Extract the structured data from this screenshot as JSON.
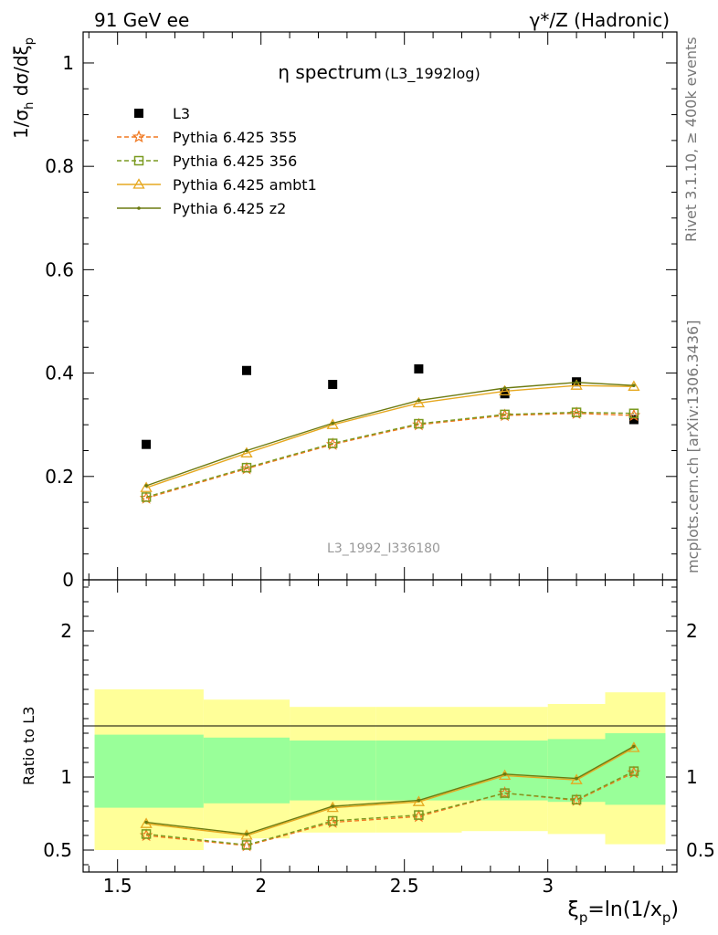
{
  "header": {
    "left": "91 GeV ee",
    "right": "γ*/Z (Hadronic)"
  },
  "side_labels": {
    "rivet": "Rivet 3.1.10, ≥ 400k events",
    "mcplots": "mcplots.cern.ch [arXiv:1306.3436]"
  },
  "chart_data": [
    {
      "type": "scatter",
      "title_main": "η spectrum",
      "title_sub": "(L3_1992log)",
      "watermark": "L3_1992_I336180",
      "ylabel_parts": {
        "a": "1/σ",
        "b": "h",
        "c": " dσ/dξ",
        "d": "p"
      },
      "xlim": [
        1.38,
        3.45
      ],
      "ylim": [
        0,
        1.06
      ],
      "yticks": [
        "0",
        "0.2",
        "0.4",
        "0.6",
        "0.8",
        "1"
      ],
      "series": [
        {
          "name": "L3",
          "color": "#000000",
          "marker": "square",
          "dashed": false,
          "x": [
            1.6,
            1.95,
            2.25,
            2.55,
            2.85,
            3.1,
            3.3
          ],
          "y": [
            0.262,
            0.405,
            0.378,
            0.408,
            0.36,
            0.383,
            0.31
          ]
        },
        {
          "name": "Pythia 6.425 355",
          "color": "#f07820",
          "marker": "star",
          "dashed": true,
          "x": [
            1.6,
            1.95,
            2.25,
            2.55,
            2.85,
            3.1,
            3.3
          ],
          "y": [
            0.158,
            0.215,
            0.262,
            0.3,
            0.318,
            0.322,
            0.318
          ]
        },
        {
          "name": "Pythia 6.425 356",
          "color": "#7a9a20",
          "marker": "open-square",
          "dashed": true,
          "x": [
            1.6,
            1.95,
            2.25,
            2.55,
            2.85,
            3.1,
            3.3
          ],
          "y": [
            0.16,
            0.217,
            0.264,
            0.302,
            0.32,
            0.324,
            0.322
          ]
        },
        {
          "name": "Pythia 6.425 ambt1",
          "color": "#e6a820",
          "marker": "triangle",
          "dashed": false,
          "x": [
            1.6,
            1.95,
            2.25,
            2.55,
            2.85,
            3.1,
            3.3
          ],
          "y": [
            0.178,
            0.245,
            0.3,
            0.342,
            0.365,
            0.376,
            0.374
          ]
        },
        {
          "name": "Pythia 6.425 z2",
          "color": "#6b7a10",
          "marker": "dot",
          "dashed": false,
          "x": [
            1.6,
            1.95,
            2.25,
            2.55,
            2.85,
            3.1,
            3.3
          ],
          "y": [
            0.182,
            0.25,
            0.303,
            0.347,
            0.371,
            0.382,
            0.376
          ]
        }
      ]
    },
    {
      "type": "line",
      "ylabel": "Ratio to L3",
      "xlabel_parts": {
        "a": "ξ",
        "b": "p",
        "c": "=ln(1/x",
        "d": "p",
        "e": ")"
      },
      "xlim": [
        1.38,
        3.45
      ],
      "ylim": [
        0.35,
        2.35
      ],
      "xticks": [
        "1.5",
        "2",
        "2.5",
        "3"
      ],
      "yticks": [
        "0.5",
        "1",
        "2"
      ],
      "bands": [
        {
          "x0": 1.42,
          "x1": 1.8,
          "inner": [
            0.79,
            1.29
          ],
          "outer": [
            0.5,
            1.6
          ]
        },
        {
          "x0": 1.8,
          "x1": 2.1,
          "inner": [
            0.82,
            1.27
          ],
          "outer": [
            0.58,
            1.53
          ]
        },
        {
          "x0": 2.1,
          "x1": 2.4,
          "inner": [
            0.84,
            1.25
          ],
          "outer": [
            0.62,
            1.48
          ]
        },
        {
          "x0": 2.4,
          "x1": 2.7,
          "inner": [
            0.84,
            1.25
          ],
          "outer": [
            0.62,
            1.48
          ]
        },
        {
          "x0": 2.7,
          "x1": 3.0,
          "inner": [
            0.84,
            1.25
          ],
          "outer": [
            0.63,
            1.48
          ]
        },
        {
          "x0": 3.0,
          "x1": 3.2,
          "inner": [
            0.83,
            1.26
          ],
          "outer": [
            0.61,
            1.5
          ]
        },
        {
          "x0": 3.2,
          "x1": 3.41,
          "inner": [
            0.81,
            1.3
          ],
          "outer": [
            0.54,
            1.58
          ]
        }
      ],
      "series": [
        {
          "name": "Pythia 6.425 355",
          "color": "#f07820",
          "marker": "star",
          "dashed": true,
          "x": [
            1.6,
            1.95,
            2.25,
            2.55,
            2.85,
            3.1,
            3.3
          ],
          "y": [
            0.6,
            0.53,
            0.69,
            0.73,
            0.89,
            0.84,
            1.03
          ]
        },
        {
          "name": "Pythia 6.425 356",
          "color": "#7a9a20",
          "marker": "open-square",
          "dashed": true,
          "x": [
            1.6,
            1.95,
            2.25,
            2.55,
            2.85,
            3.1,
            3.3
          ],
          "y": [
            0.61,
            0.535,
            0.7,
            0.74,
            0.89,
            0.845,
            1.04
          ]
        },
        {
          "name": "Pythia 6.425 ambt1",
          "color": "#e6a820",
          "marker": "triangle",
          "dashed": false,
          "x": [
            1.6,
            1.95,
            2.25,
            2.55,
            2.85,
            3.1,
            3.3
          ],
          "y": [
            0.68,
            0.6,
            0.79,
            0.83,
            1.01,
            0.98,
            1.2
          ]
        },
        {
          "name": "Pythia 6.425 z2",
          "color": "#6b7a10",
          "marker": "dot",
          "dashed": false,
          "x": [
            1.6,
            1.95,
            2.25,
            2.55,
            2.85,
            3.1,
            3.3
          ],
          "y": [
            0.69,
            0.61,
            0.8,
            0.84,
            1.02,
            0.99,
            1.21
          ]
        }
      ]
    }
  ]
}
